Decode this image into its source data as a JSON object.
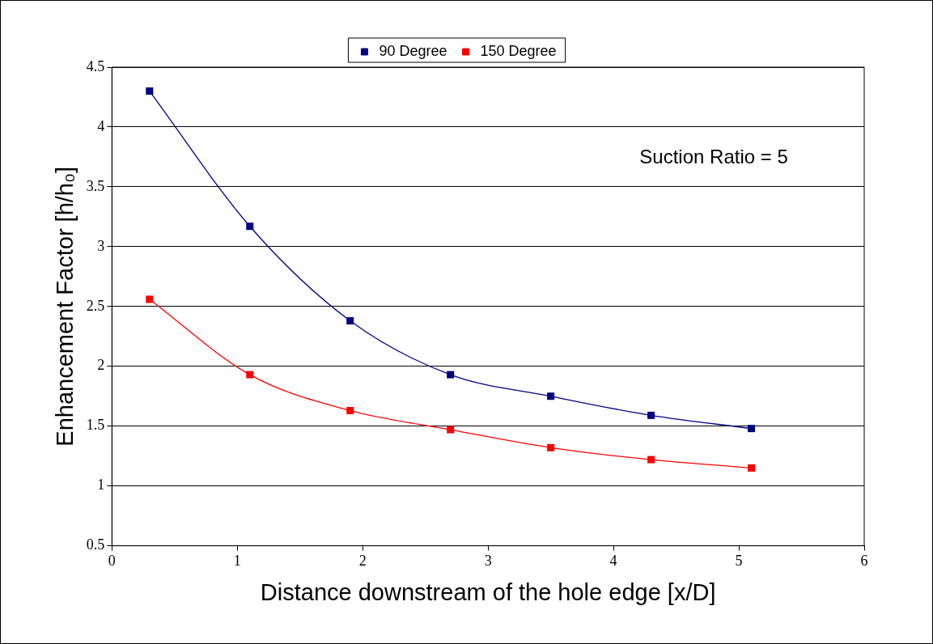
{
  "chart_data": {
    "type": "line",
    "xlabel": "Distance downstream of the hole edge [x/D]",
    "ylabel": "Enhancement Factor [h/h₀]",
    "x": [
      0.3,
      1.1,
      1.9,
      2.7,
      3.5,
      4.3,
      5.1
    ],
    "series": [
      {
        "name": "90 Degree",
        "color": "#000080",
        "values": [
          4.3,
          3.17,
          2.38,
          1.93,
          1.75,
          1.59,
          1.48
        ]
      },
      {
        "name": "150 Degree",
        "color": "#ff0000",
        "values": [
          2.56,
          1.93,
          1.63,
          1.47,
          1.32,
          1.22,
          1.15
        ]
      }
    ],
    "xlim": [
      0,
      6
    ],
    "xticks": [
      0,
      1,
      2,
      3,
      4,
      5,
      6
    ],
    "ylim": [
      0.5,
      4.5
    ],
    "yticks": [
      0.5,
      1,
      1.5,
      2,
      2.5,
      3,
      3.5,
      4,
      4.5
    ],
    "grid": "y",
    "legend": "top",
    "marker": "square",
    "line_style": "solid",
    "annotations": [
      "Suction Ratio = 5"
    ]
  }
}
